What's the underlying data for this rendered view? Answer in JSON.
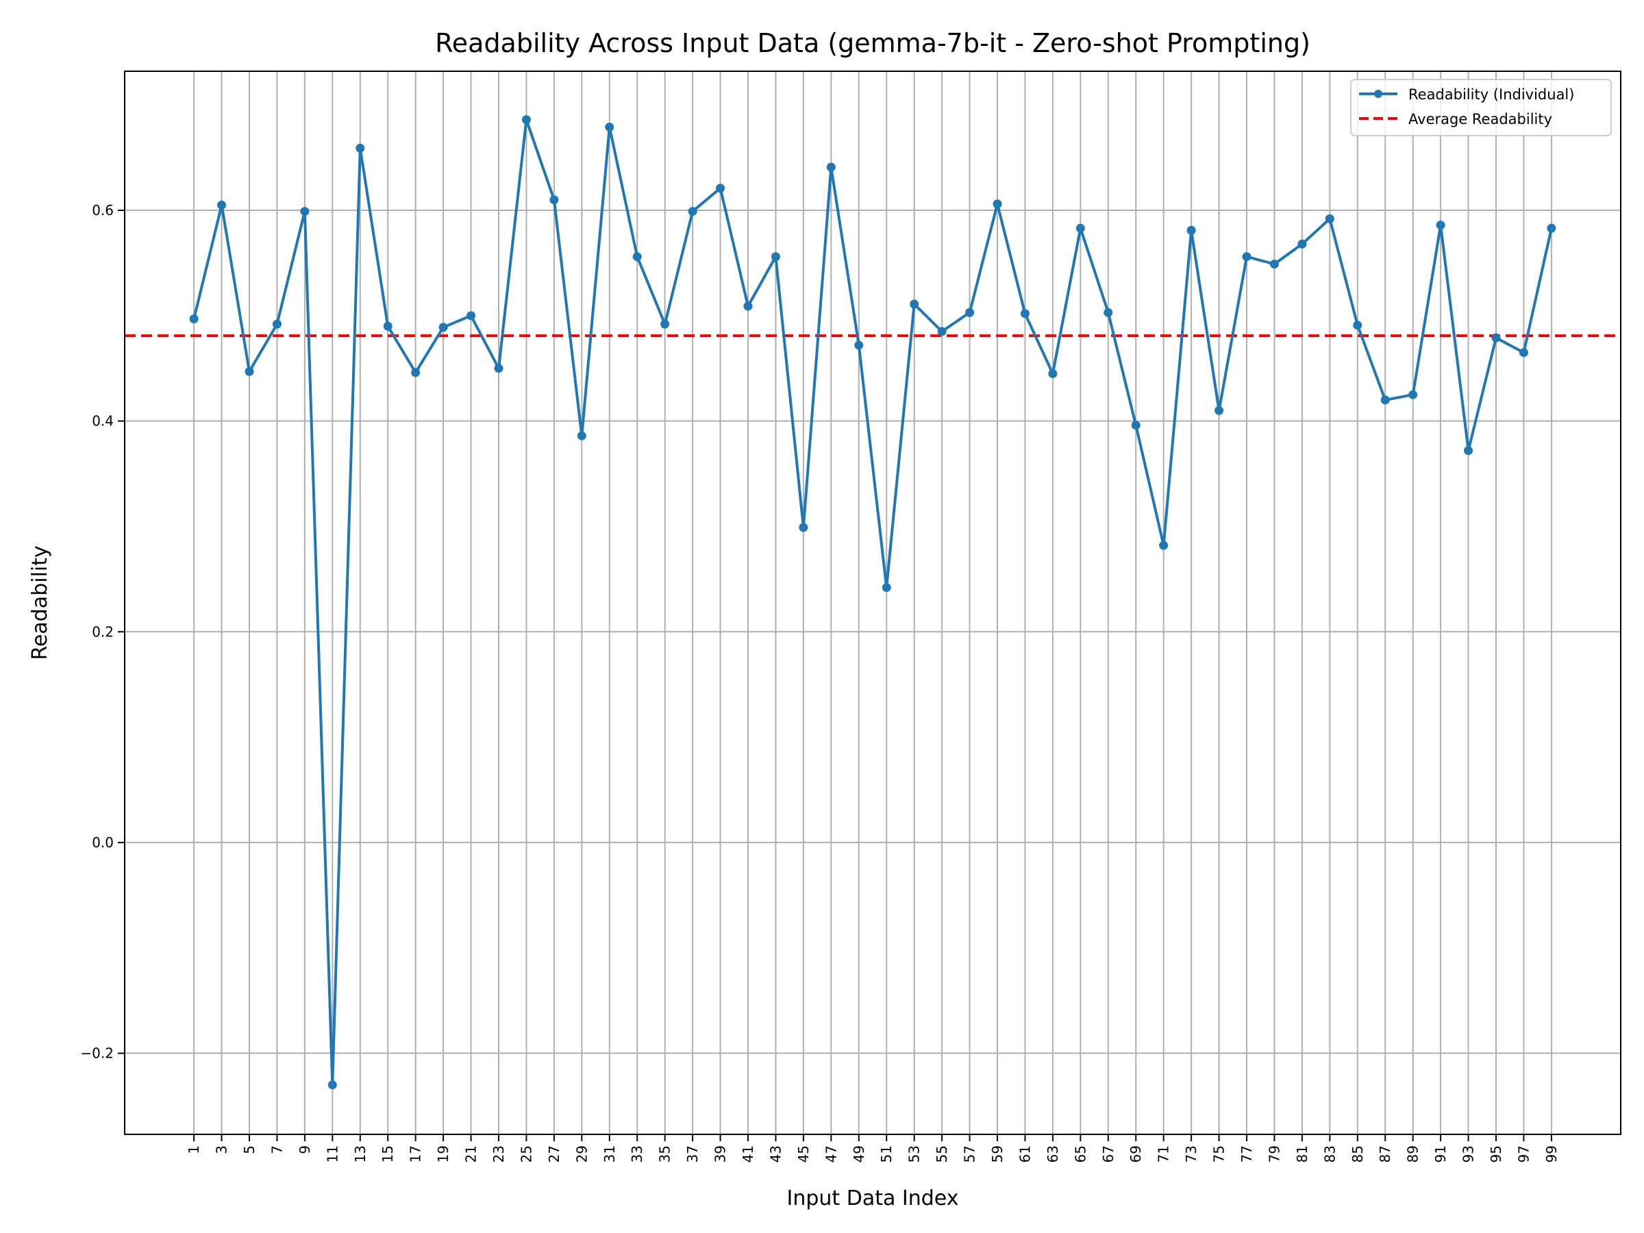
{
  "chart_data": {
    "type": "line",
    "title": "Readability Across Input Data (gemma-7b-it - Zero-shot Prompting)",
    "xlabel": "Input Data Index",
    "ylabel": "Readability",
    "x": [
      1,
      3,
      5,
      7,
      9,
      11,
      13,
      15,
      17,
      19,
      21,
      23,
      25,
      27,
      29,
      31,
      33,
      35,
      37,
      39,
      41,
      43,
      45,
      47,
      49,
      51,
      53,
      55,
      57,
      59,
      61,
      63,
      65,
      67,
      69,
      71,
      73,
      75,
      77,
      79,
      81,
      83,
      85,
      87,
      89,
      91,
      93,
      95,
      97,
      99
    ],
    "x_tick_labels": [
      "1",
      "3",
      "5",
      "7",
      "9",
      "11",
      "13",
      "15",
      "17",
      "19",
      "21",
      "23",
      "25",
      "27",
      "29",
      "31",
      "33",
      "35",
      "37",
      "39",
      "41",
      "43",
      "45",
      "47",
      "49",
      "51",
      "53",
      "55",
      "57",
      "59",
      "61",
      "63",
      "65",
      "67",
      "69",
      "71",
      "73",
      "75",
      "77",
      "79",
      "81",
      "83",
      "85",
      "87",
      "89",
      "91",
      "93",
      "95",
      "97",
      "99"
    ],
    "xlim": [
      -4,
      104
    ],
    "ylim": [
      -0.277,
      0.732
    ],
    "y_ticks": [
      -0.2,
      0.0,
      0.2,
      0.4,
      0.6
    ],
    "y_tick_labels": [
      "−0.2",
      "0.0",
      "0.2",
      "0.4",
      "0.6"
    ],
    "series": [
      {
        "name": "Readability (Individual)",
        "style": "line-marker",
        "color": "#1f77b4",
        "values": [
          0.497,
          0.605,
          0.447,
          0.492,
          0.599,
          -0.23,
          0.659,
          0.49,
          0.446,
          0.489,
          0.5,
          0.45,
          0.686,
          0.61,
          0.386,
          0.679,
          0.556,
          0.492,
          0.599,
          0.621,
          0.509,
          0.556,
          0.299,
          0.641,
          0.472,
          0.242,
          0.511,
          0.485,
          0.503,
          0.606,
          0.502,
          0.445,
          0.583,
          0.503,
          0.396,
          0.282,
          0.581,
          0.41,
          0.556,
          0.549,
          0.568,
          0.592,
          0.491,
          0.42,
          0.425,
          0.586,
          0.372,
          0.479,
          0.465,
          0.583
        ]
      },
      {
        "name": "Average Readability",
        "style": "dashed",
        "color": "#ff0000",
        "value": 0.481
      }
    ],
    "grid": true,
    "legend_position": "top-right"
  }
}
